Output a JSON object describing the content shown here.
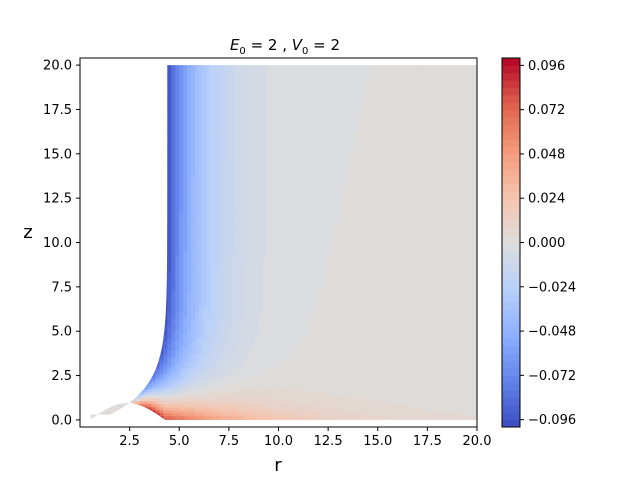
{
  "chart_data": {
    "type": "heatmap",
    "title": "E_0 = 2 , V_0 = 2",
    "title_parts": {
      "sym1": "E",
      "sub1": "0",
      "val1": " = 2 , ",
      "sym2": "V",
      "sub2": "0",
      "val2": " = 2"
    },
    "xlabel": "r",
    "ylabel": "z",
    "xlim": [
      0,
      20
    ],
    "ylim": [
      -0.4,
      20.4
    ],
    "x_ticks": [
      "2.5",
      "5.0",
      "7.5",
      "10.0",
      "12.5",
      "15.0",
      "17.5",
      "20.0"
    ],
    "x_tick_values": [
      2.5,
      5.0,
      7.5,
      10.0,
      12.5,
      15.0,
      17.5,
      20.0
    ],
    "y_ticks": [
      "0.0",
      "2.5",
      "5.0",
      "7.5",
      "10.0",
      "12.5",
      "15.0",
      "17.5",
      "20.0"
    ],
    "y_tick_values": [
      0.0,
      2.5,
      5.0,
      7.5,
      10.0,
      12.5,
      15.0,
      17.5,
      20.0
    ],
    "colormap": "coolwarm",
    "colorbar": {
      "vmin": -0.1,
      "vmax": 0.1,
      "ticks": [
        "0.096",
        "0.072",
        "0.048",
        "0.024",
        "0.000",
        "−0.024",
        "−0.048",
        "−0.072",
        "−0.096"
      ],
      "tick_values": [
        0.096,
        0.072,
        0.048,
        0.024,
        0.0,
        -0.024,
        -0.048,
        -0.072,
        -0.096
      ],
      "levels": 50
    },
    "grid": false,
    "legend": "none"
  }
}
